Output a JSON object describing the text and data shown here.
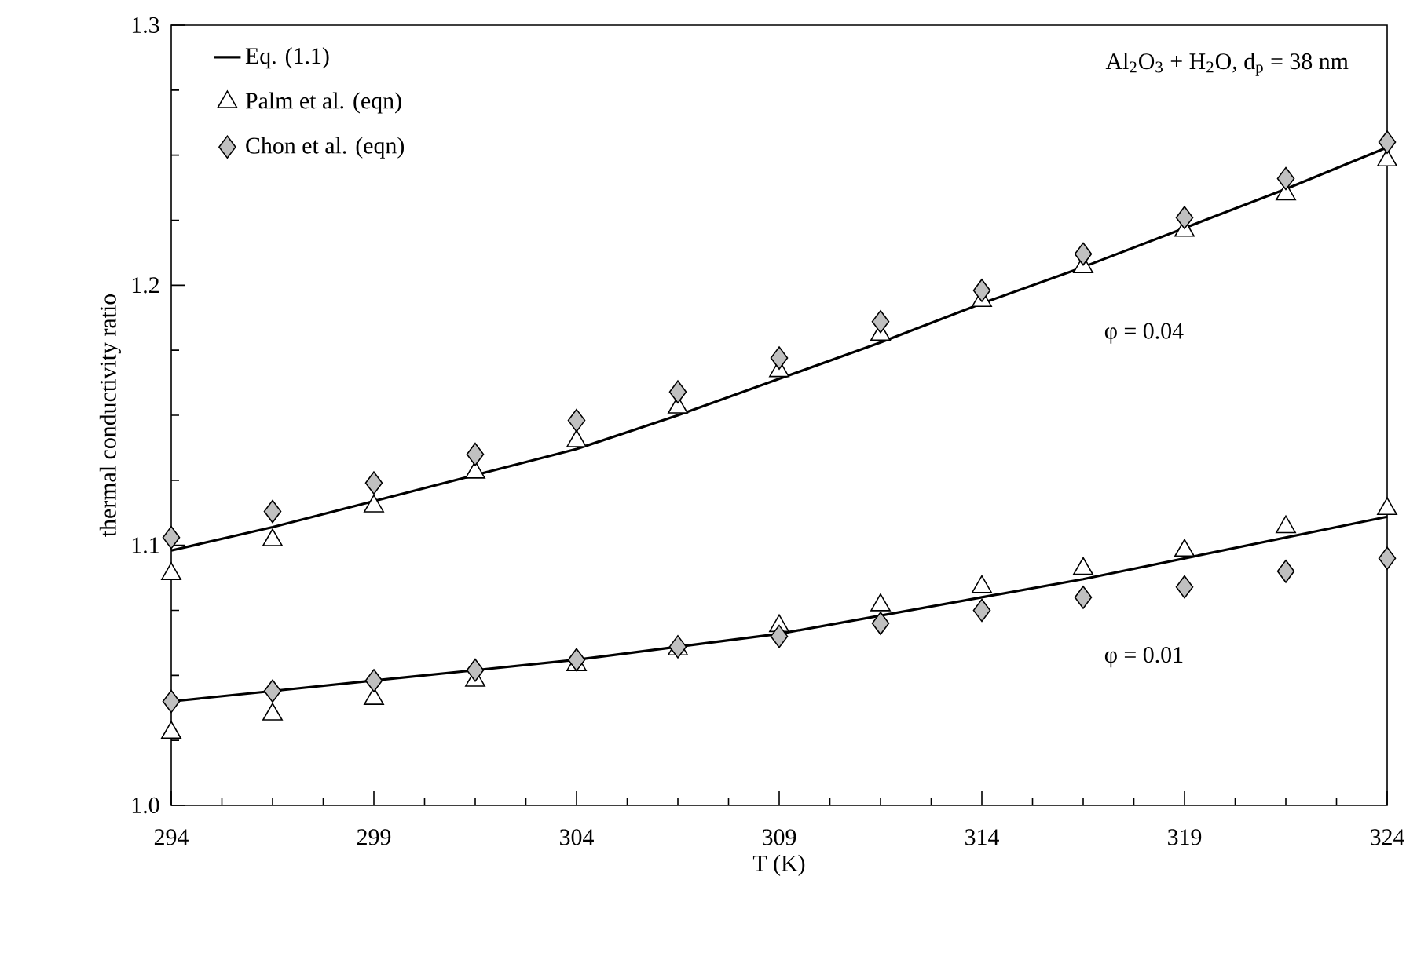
{
  "chart_data": {
    "type": "scatter",
    "xlabel": "T (K)",
    "ylabel": "thermal conductivity ratio",
    "xlim": [
      294,
      324
    ],
    "ylim": [
      1.0,
      1.3
    ],
    "xticks": [
      294,
      299,
      304,
      309,
      314,
      319,
      324
    ],
    "yticks": [
      {
        "value": 1.0,
        "label": "1.0"
      },
      {
        "value": 1.1,
        "label": "1.1"
      },
      {
        "value": 1.2,
        "label": "1.2"
      },
      {
        "value": 1.3,
        "label": "1.3"
      }
    ],
    "x": [
      294,
      296.5,
      299,
      301.5,
      304,
      306.5,
      309,
      311.5,
      314,
      316.5,
      319,
      321.5,
      324
    ],
    "legend": "top left",
    "grid": false,
    "series": [
      {
        "name": "Eq. (1.1)",
        "type": "line",
        "marker": "none",
        "line_style": "solid",
        "color": "#000000",
        "values": [
          1.098,
          1.107,
          1.117,
          1.127,
          1.137,
          1.15,
          1.164,
          1.178,
          1.193,
          1.207,
          1.222,
          1.237,
          1.253
        ]
      },
      {
        "name": "Palm et al.   (eqn)",
        "marker": "triangle",
        "color": "#ffffff",
        "values": [
          1.089,
          1.102,
          1.115,
          1.128,
          1.14,
          1.153,
          1.167,
          1.181,
          1.194,
          1.207,
          1.221,
          1.235,
          1.248
        ]
      },
      {
        "name": "Chon et al.   (eqn)",
        "marker": "diamond",
        "color": "#c0c0c0",
        "values": [
          1.103,
          1.113,
          1.124,
          1.135,
          1.148,
          1.159,
          1.172,
          1.186,
          1.198,
          1.212,
          1.226,
          1.241,
          1.255
        ]
      },
      {
        "type": "line",
        "marker": "none",
        "line_style": "solid",
        "color": "#000000",
        "values": [
          1.04,
          1.044,
          1.048,
          1.052,
          1.056,
          1.061,
          1.066,
          1.073,
          1.08,
          1.087,
          1.095,
          1.103,
          1.111
        ]
      },
      {
        "marker": "triangle",
        "color": "#ffffff",
        "values": [
          1.028,
          1.035,
          1.041,
          1.048,
          1.054,
          1.06,
          1.069,
          1.077,
          1.084,
          1.091,
          1.098,
          1.107,
          1.114
        ]
      },
      {
        "marker": "diamond",
        "color": "#c0c0c0",
        "values": [
          1.04,
          1.044,
          1.048,
          1.052,
          1.056,
          1.061,
          1.065,
          1.07,
          1.075,
          1.08,
          1.084,
          1.09,
          1.095
        ]
      }
    ],
    "annotations": [
      "Al$_{2}$O$_{3}$ + H$_{2}$O, d$_{p}$ = 38 nm",
      "φ = 0.04",
      "φ = 0.01"
    ]
  }
}
